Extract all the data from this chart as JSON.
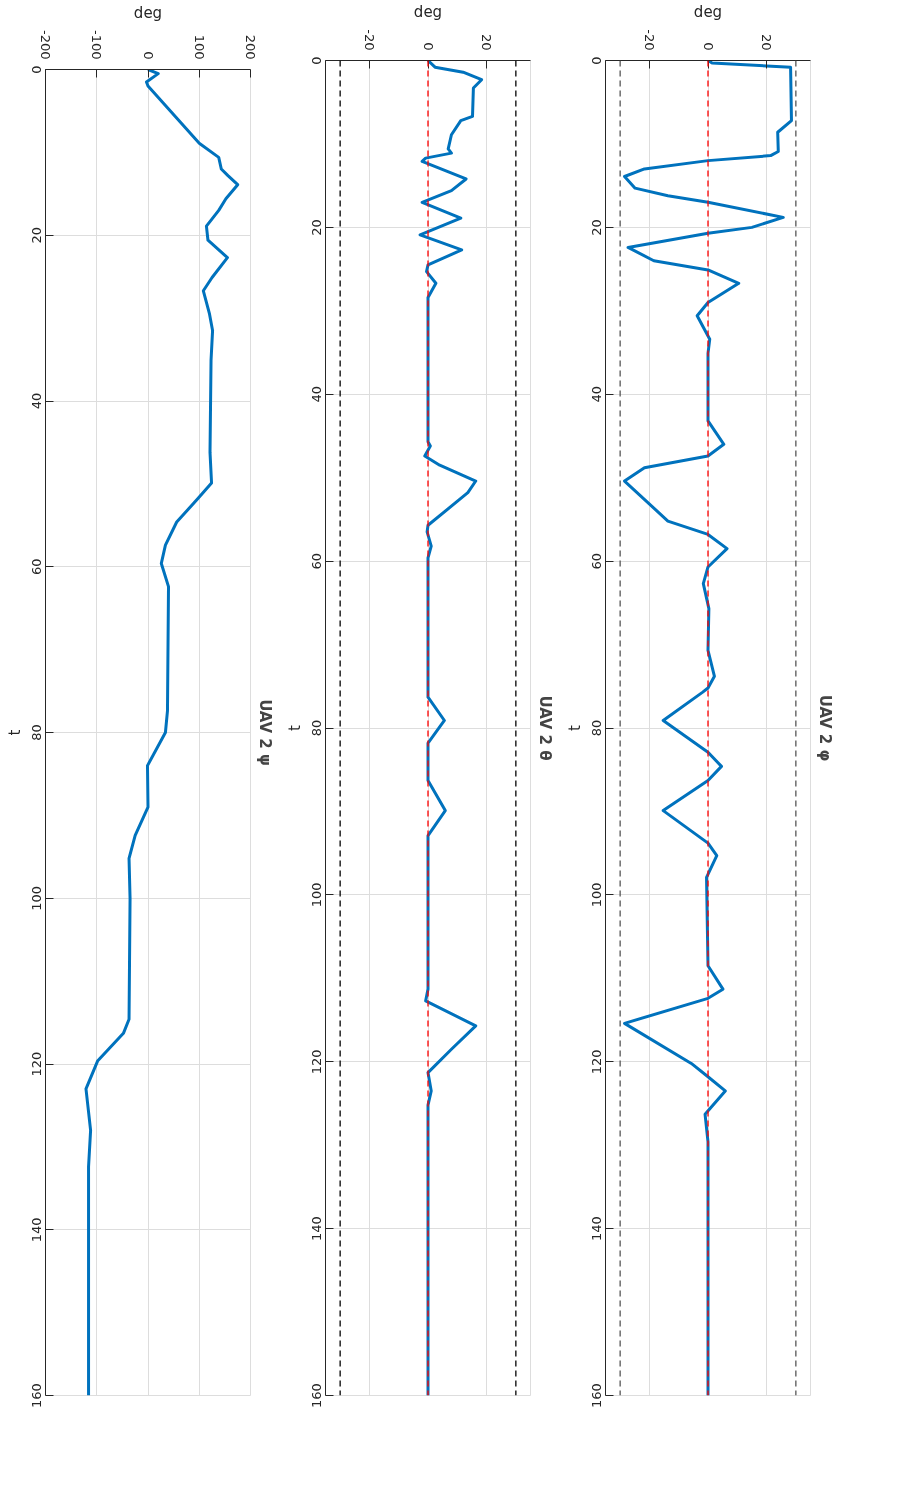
{
  "chart_data": [
    {
      "type": "line",
      "orientation": "horizontal",
      "title": "UAV 2 ψ",
      "xlabel": "deg",
      "ylabel": "t",
      "xlim": [
        -200,
        200
      ],
      "xticks": [
        -200,
        -100,
        0,
        100,
        200
      ],
      "ylim": [
        160,
        0
      ],
      "yticks": [
        0,
        20,
        40,
        60,
        80,
        100,
        120,
        140,
        160
      ],
      "grid": true,
      "series": [
        {
          "color": "#0072bd",
          "x": [
            0,
            0.5,
            1.5,
            2,
            8.9,
            10.6,
            12,
            12.8,
            13.9,
            15.6,
            17,
            18.9,
            20.6,
            22.7,
            25.1,
            26.7,
            29.5,
            31.5,
            35.1,
            46.2,
            49.9,
            51.8,
            54.6,
            57.4,
            59.6,
            62.4,
            77.4,
            80,
            84,
            89,
            92.4,
            95.2,
            100,
            114.6,
            116.3,
            119.6,
            123,
            128,
            132.4,
            160
          ],
          "values": [
            0,
            20,
            -3,
            0,
            100,
            138,
            143,
            156,
            175,
            152,
            138,
            114,
            117,
            155,
            125,
            108,
            120,
            126,
            123,
            121,
            124,
            97,
            56,
            34,
            26,
            40,
            38,
            34,
            -1,
            0,
            -25,
            -37,
            -35,
            -37,
            -48,
            -98,
            -121,
            -112,
            -116,
            -116
          ]
        }
      ]
    },
    {
      "type": "line",
      "orientation": "horizontal",
      "title": "UAV 2 θ",
      "xlabel": "deg",
      "ylabel": "t",
      "xlim": [
        -35,
        35
      ],
      "xticks": [
        -20,
        0,
        20
      ],
      "ylim": [
        160,
        0
      ],
      "yticks": [
        0,
        20,
        40,
        60,
        80,
        100,
        120,
        140,
        160
      ],
      "grid": true,
      "ref_lines": [
        {
          "axis": "x",
          "value": -30,
          "color": "#000000",
          "line_style": "dashed"
        },
        {
          "axis": "x",
          "value": 30,
          "color": "#000000",
          "line_style": "dashed"
        },
        {
          "axis": "x",
          "value": 0,
          "color": "#ff0000",
          "line_style": "dashed"
        }
      ],
      "series": [
        {
          "color": "#0072bd",
          "x": [
            0,
            0.8,
            1.4,
            2.3,
            3.3,
            6.7,
            7.2,
            8.9,
            10.6,
            11.1,
            11.7,
            12.1,
            14.2,
            15.6,
            17,
            18.9,
            20.9,
            22.7,
            24.5,
            25.3,
            26.7,
            28.4,
            45.7,
            46.2,
            47.4,
            48.5,
            50.4,
            51.8,
            55.7,
            56.5,
            58.2,
            59.6,
            76.3,
            79.1,
            81.8,
            86.3,
            89.9,
            92.9,
            111.3,
            112.7,
            115.7,
            118.5,
            121.3,
            123.5,
            125.2,
            160
          ],
          "values": [
            0,
            2.4,
            12,
            18.3,
            15.5,
            15.2,
            11.2,
            8,
            6.9,
            8,
            -0.8,
            -2,
            13,
            8,
            -2,
            11.2,
            -2.7,
            11.5,
            0,
            -0.5,
            2.7,
            0,
            0,
            0.8,
            -1.1,
            4,
            16.3,
            13.6,
            0,
            -0.3,
            1.1,
            0,
            0,
            5.6,
            0,
            0,
            5.9,
            0,
            0,
            -0.8,
            16.3,
            8,
            0,
            1.1,
            0,
            0
          ]
        }
      ]
    },
    {
      "type": "line",
      "orientation": "horizontal",
      "title": "UAV 2 φ",
      "xlabel": "deg",
      "ylabel": "t",
      "xlim": [
        -35,
        35
      ],
      "xticks": [
        -20,
        0,
        20
      ],
      "ylim": [
        160,
        0
      ],
      "yticks": [
        0,
        20,
        40,
        60,
        80,
        100,
        120,
        140,
        160
      ],
      "grid": true,
      "ref_lines": [
        {
          "axis": "x",
          "value": -30,
          "color": "#555555",
          "line_style": "dashed"
        },
        {
          "axis": "x",
          "value": 30,
          "color": "#555555",
          "line_style": "dashed"
        },
        {
          "axis": "x",
          "value": 0,
          "color": "#ff0000",
          "line_style": "dashed"
        }
      ],
      "series": [
        {
          "color": "#0072bd",
          "x": [
            0,
            0.3,
            0.8,
            7.2,
            8.6,
            10.9,
            11.4,
            12,
            13,
            13.9,
            15.3,
            16.2,
            17,
            18.8,
            20,
            20.7,
            22.4,
            24,
            25.1,
            26.7,
            29,
            30.6,
            33.4,
            35.1,
            43.2,
            46,
            47.4,
            48.8,
            50.4,
            55.2,
            56.8,
            58.5,
            60.7,
            62.7,
            65.7,
            70.7,
            73.8,
            75.2,
            75.7,
            79.1,
            82.9,
            84.6,
            86.3,
            89.9,
            93.8,
            95.3,
            97.9,
            108.5,
            111.3,
            112.4,
            115.4,
            120.2,
            121.8,
            123.5,
            126.3,
            129.6,
            160
          ],
          "values": [
            0,
            1.4,
            28.2,
            28.5,
            23.8,
            24,
            21.4,
            0,
            -21.7,
            -28.5,
            -24.9,
            -13.7,
            0,
            25.7,
            15,
            0,
            -27.3,
            -18.5,
            0,
            10.5,
            0,
            -3.7,
            0.6,
            0,
            0,
            5.4,
            0,
            -21.7,
            -28.5,
            -13.7,
            0,
            6.5,
            0,
            -1.6,
            0.3,
            0,
            2.2,
            0,
            -1.8,
            -15.3,
            0,
            4.6,
            0,
            -15.3,
            0,
            3,
            -0.5,
            0,
            5.1,
            0,
            -28.5,
            -5.7,
            0,
            5.9,
            -1,
            0,
            0
          ]
        }
      ]
    }
  ]
}
